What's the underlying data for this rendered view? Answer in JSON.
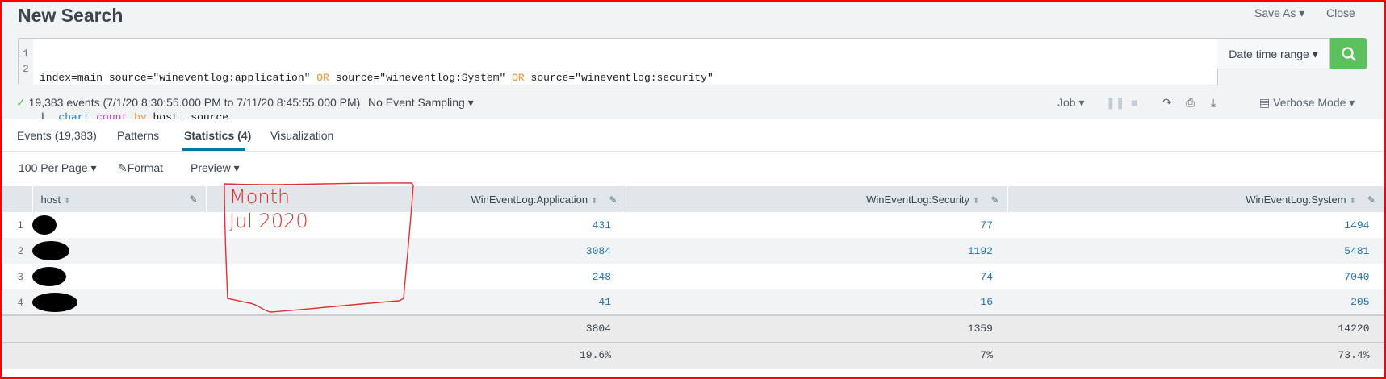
{
  "header": {
    "title": "New Search",
    "save_as": "Save As ▾",
    "close": "Close"
  },
  "search": {
    "line_numbers": [
      "1",
      "2"
    ],
    "line1": [
      {
        "t": "index=main source=\"wineventlog:application\" "
      },
      {
        "t": "OR",
        "c": "or"
      },
      {
        "t": " source=\"wineventlog:System\" "
      },
      {
        "t": "OR",
        "c": "or"
      },
      {
        "t": " source=\"wineventlog:security\""
      }
    ],
    "line2": [
      {
        "t": "|  "
      },
      {
        "t": "chart",
        "c": "kw"
      },
      {
        "t": " "
      },
      {
        "t": "count",
        "c": "fn"
      },
      {
        "t": " "
      },
      {
        "t": "by",
        "c": "by"
      },
      {
        "t": " host, source"
      }
    ],
    "date_range": "Date time range ▾",
    "search_icon": "magnifier-icon"
  },
  "status": {
    "summary": "19,383 events (7/1/20 8:30:55.000 PM to 7/11/20 8:45:55.000 PM)",
    "sampling": "No Event Sampling ▾",
    "job": "Job ▾",
    "mode": "Verbose Mode ▾"
  },
  "tabs": [
    {
      "label": "Events (19,383)"
    },
    {
      "label": "Patterns"
    },
    {
      "label": "Statistics (4)",
      "active": true
    },
    {
      "label": "Visualization"
    }
  ],
  "toolbar": {
    "per_page": "100 Per Page ▾",
    "format": "Format",
    "preview": "Preview ▾"
  },
  "table": {
    "columns": [
      "host",
      "WinEventLog:Application",
      "WinEventLog:Security",
      "WinEventLog:System"
    ],
    "rows": [
      {
        "n": "1",
        "app": "431",
        "sec": "77",
        "sys": "1494"
      },
      {
        "n": "2",
        "app": "3084",
        "sec": "1192",
        "sys": "5481"
      },
      {
        "n": "3",
        "app": "248",
        "sec": "74",
        "sys": "7040"
      },
      {
        "n": "4",
        "app": "41",
        "sec": "16",
        "sys": "205"
      }
    ],
    "totals": {
      "app": "3804",
      "sec": "1359",
      "sys": "14220"
    },
    "percent": {
      "app": "19.6%",
      "sec": "7%",
      "sys": "73.4%"
    }
  },
  "annotation": {
    "line1": "Month",
    "line2": "Jul 2020",
    "color": "#e03030"
  }
}
